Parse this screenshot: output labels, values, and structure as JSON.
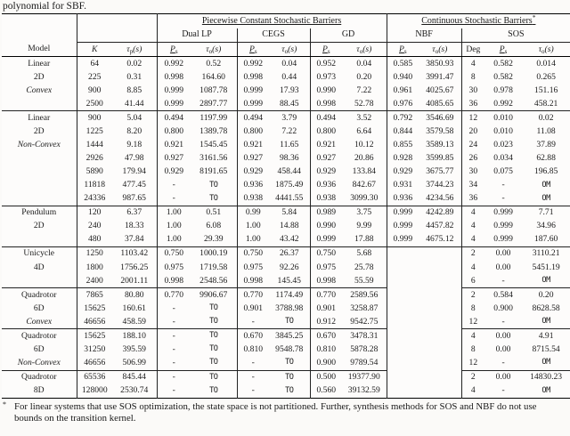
{
  "caption_top": "polynomial for SBF.",
  "header": {
    "piecewise_title": "Piecewise Constant Stochastic Barriers",
    "continuous_title": "Continuous Stochastic Barriers",
    "continuous_sup": "*",
    "methods": {
      "dual_lp": "Dual LP",
      "cegs": "CEGS",
      "gd": "GD",
      "nbf": "NBF",
      "sos": "SOS"
    },
    "col_model": "Model",
    "col_k": "K",
    "col_deg": "Deg",
    "math": {
      "tau": "τ",
      "sub_p": "p",
      "sub_o": "o",
      "args": "(s)",
      "p_base": "P",
      "p_sub": "s"
    }
  },
  "table": {
    "groups": [
      {
        "rows": [
          {
            "model": "Linear",
            "model_italic": false,
            "cells": [
              "64",
              "0.02",
              "0.992",
              "0.52",
              "0.992",
              "0.04",
              "0.952",
              "0.04",
              "0.585",
              "3850.93",
              "4",
              "0.582",
              "0.014"
            ]
          },
          {
            "model": "2D",
            "model_italic": false,
            "cells": [
              "225",
              "0.31",
              "0.998",
              "164.60",
              "0.998",
              "0.44",
              "0.973",
              "0.20",
              "0.940",
              "3991.47",
              "8",
              "0.582",
              "0.265"
            ]
          },
          {
            "model": "Convex",
            "model_italic": true,
            "cells": [
              "900",
              "8.85",
              "0.999",
              "1087.78",
              "0.999",
              "17.93",
              "0.990",
              "7.22",
              "0.961",
              "4025.67",
              "30",
              "0.978",
              "151.16"
            ]
          },
          {
            "model": "",
            "model_italic": false,
            "cells": [
              "2500",
              "41.44",
              "0.999",
              "2897.77",
              "0.999",
              "88.45",
              "0.998",
              "52.78",
              "0.976",
              "4085.65",
              "36",
              "0.992",
              "458.21"
            ]
          }
        ]
      },
      {
        "rows": [
          {
            "model": "Linear",
            "model_italic": false,
            "cells": [
              "900",
              "5.04",
              "0.494",
              "1197.99",
              "0.494",
              "3.79",
              "0.494",
              "3.52",
              "0.792",
              "3546.69",
              "12",
              "0.010",
              "0.02"
            ]
          },
          {
            "model": "2D",
            "model_italic": false,
            "cells": [
              "1225",
              "8.20",
              "0.800",
              "1389.78",
              "0.800",
              "7.22",
              "0.800",
              "6.64",
              "0.844",
              "3579.58",
              "20",
              "0.010",
              "11.08"
            ]
          },
          {
            "model": "Non-Convex",
            "model_italic": true,
            "cells": [
              "1444",
              "9.18",
              "0.921",
              "1545.45",
              "0.921",
              "11.65",
              "0.921",
              "10.12",
              "0.855",
              "3589.13",
              "24",
              "0.023",
              "37.89"
            ]
          },
          {
            "model": "",
            "model_italic": false,
            "cells": [
              "2926",
              "47.98",
              "0.927",
              "3161.56",
              "0.927",
              "98.36",
              "0.927",
              "20.86",
              "0.928",
              "3599.85",
              "26",
              "0.034",
              "62.88"
            ]
          },
          {
            "model": "",
            "model_italic": false,
            "cells": [
              "5890",
              "179.94",
              "0.929",
              "8191.65",
              "0.929",
              "458.44",
              "0.929",
              "133.84",
              "0.929",
              "3675.77",
              "30",
              "0.075",
              "196.85"
            ]
          },
          {
            "model": "",
            "model_italic": false,
            "cells": [
              "11818",
              "477.45",
              "-",
              "TO",
              "0.936",
              "1875.49",
              "0.936",
              "842.67",
              "0.931",
              "3744.23",
              "34",
              "-",
              "OM"
            ]
          },
          {
            "model": "",
            "model_italic": false,
            "cells": [
              "24336",
              "987.65",
              "-",
              "TO",
              "0.938",
              "4441.55",
              "0.938",
              "3099.30",
              "0.936",
              "4234.56",
              "36",
              "-",
              "OM"
            ]
          }
        ]
      },
      {
        "rows": [
          {
            "model": "Pendulum",
            "model_italic": false,
            "cells": [
              "120",
              "6.37",
              "1.00",
              "0.51",
              "0.99",
              "5.84",
              "0.989",
              "3.75",
              "0.999",
              "4242.89",
              "4",
              "0.999",
              "7.71"
            ]
          },
          {
            "model": "2D",
            "model_italic": false,
            "cells": [
              "240",
              "18.33",
              "1.00",
              "6.08",
              "1.00",
              "14.88",
              "0.990",
              "9.99",
              "0.999",
              "4457.82",
              "4",
              "0.999",
              "34.96"
            ]
          },
          {
            "model": "",
            "model_italic": false,
            "cells": [
              "480",
              "37.84",
              "1.00",
              "29.39",
              "1.00",
              "43.42",
              "0.999",
              "17.88",
              "0.999",
              "4675.12",
              "4",
              "0.999",
              "187.60"
            ]
          }
        ]
      },
      {
        "rows": [
          {
            "model": "Unicycle",
            "model_italic": false,
            "cells": [
              "1250",
              "1103.42",
              "0.750",
              "1000.19",
              "0.750",
              "26.37",
              "0.750",
              "5.68",
              "",
              "",
              "2",
              "0.00",
              "3110.21"
            ]
          },
          {
            "model": "4D",
            "model_italic": false,
            "cells": [
              "1800",
              "1756.25",
              "0.975",
              "1719.58",
              "0.975",
              "92.26",
              "0.975",
              "25.78",
              "",
              "",
              "4",
              "0.00",
              "5451.19"
            ]
          },
          {
            "model": "",
            "model_italic": false,
            "cells": [
              "2400",
              "2001.11",
              "0.998",
              "2548.56",
              "0.998",
              "145.45",
              "0.998",
              "55.59",
              "",
              "",
              "6",
              "-",
              "OM"
            ]
          }
        ]
      },
      {
        "rows": [
          {
            "model": "Quadrotor",
            "model_italic": false,
            "cells": [
              "7865",
              "80.80",
              "0.770",
              "9906.67",
              "0.770",
              "1174.49",
              "0.770",
              "2589.56",
              "",
              "",
              "2",
              "0.584",
              "0.20"
            ]
          },
          {
            "model": "6D",
            "model_italic": false,
            "cells": [
              "15625",
              "160.61",
              "-",
              "TO",
              "0.901",
              "3788.98",
              "0.901",
              "3258.87",
              "",
              "",
              "8",
              "0.900",
              "8628.58"
            ]
          },
          {
            "model": "Convex",
            "model_italic": true,
            "cells": [
              "46656",
              "458.59",
              "-",
              "TO",
              "-",
              "TO",
              "0.912",
              "9542.75",
              "",
              "",
              "12",
              "-",
              "OM"
            ]
          }
        ]
      },
      {
        "rows": [
          {
            "model": "Quadrotor",
            "model_italic": false,
            "cells": [
              "15625",
              "188.10",
              "-",
              "TO",
              "0.670",
              "3845.25",
              "0.670",
              "3478.31",
              "",
              "",
              "4",
              "0.00",
              "4.91"
            ]
          },
          {
            "model": "6D",
            "model_italic": false,
            "cells": [
              "31250",
              "395.59",
              "-",
              "TO",
              "0.810",
              "9548.78",
              "0.810",
              "5878.28",
              "",
              "",
              "8",
              "0.00",
              "8715.54"
            ]
          },
          {
            "model": "Non-Convex",
            "model_italic": true,
            "cells": [
              "46656",
              "506.99",
              "-",
              "TO",
              "-",
              "TO",
              "0.900",
              "9789.54",
              "",
              "",
              "12",
              "-",
              "OM"
            ]
          }
        ]
      },
      {
        "rows": [
          {
            "model": "Quadrotor",
            "model_italic": false,
            "cells": [
              "65536",
              "845.44",
              "-",
              "TO",
              "-",
              "TO",
              "0.500",
              "19377.90",
              "",
              "",
              "2",
              "0.00",
              "14830.23"
            ]
          },
          {
            "model": "8D",
            "model_italic": false,
            "cells": [
              "128000",
              "2530.74",
              "-",
              "TO",
              "-",
              "TO",
              "0.560",
              "39132.59",
              "",
              "",
              "4",
              "-",
              "OM"
            ]
          }
        ]
      }
    ]
  },
  "footnote": {
    "marker": "*",
    "text": "For linear systems that use SOS optimization, the state space is not partitioned. Further, synthesis methods for SOS and NBF do not use bounds on the transition kernel."
  }
}
